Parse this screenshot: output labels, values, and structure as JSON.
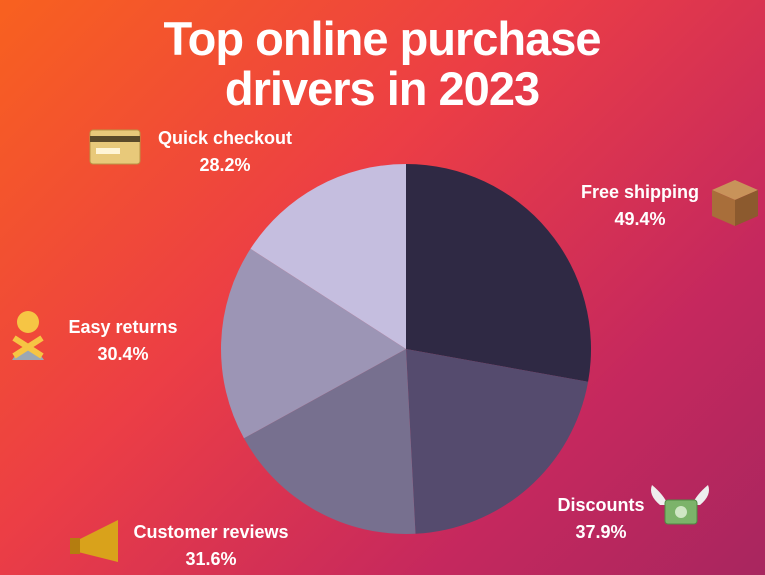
{
  "chart_data": {
    "type": "pie",
    "title": "Top online purchase drivers in 2023",
    "categories": [
      "Free shipping",
      "Discounts",
      "Customer reviews",
      "Easy returns",
      "Quick checkout"
    ],
    "values": [
      49.4,
      37.9,
      31.6,
      30.4,
      28.2
    ],
    "value_labels": [
      "49.4%",
      "37.9%",
      "31.6%",
      "30.4%",
      "28.2%"
    ],
    "colors": [
      "#2f2944",
      "#554b6e",
      "#77708f",
      "#9c95b5",
      "#c5bedf"
    ]
  }
}
